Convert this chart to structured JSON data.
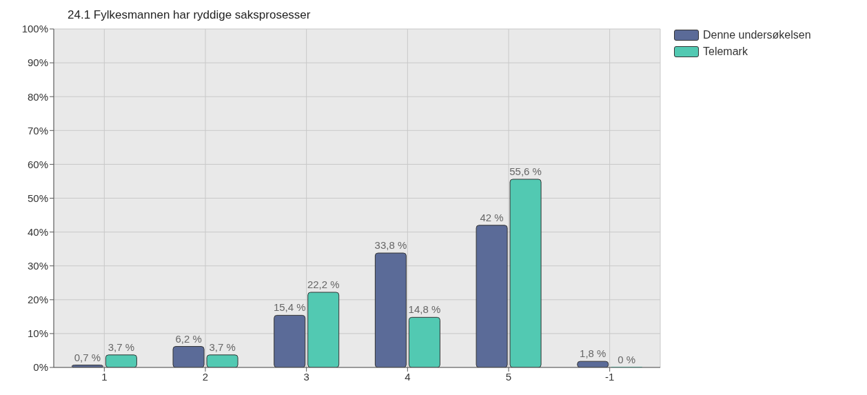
{
  "chart_data": {
    "type": "bar",
    "title": "24.1 Fylkesmannen har ryddige saksprosesser",
    "categories": [
      "1",
      "2",
      "3",
      "4",
      "5",
      "-1"
    ],
    "series": [
      {
        "name": "Denne undersøkelsen",
        "color": "#5b6b98",
        "values": [
          0.7,
          6.2,
          15.4,
          33.8,
          42,
          1.8
        ],
        "value_labels": [
          "0,7 %",
          "6,2 %",
          "15,4 %",
          "33,8 %",
          "42 %",
          "1,8 %"
        ]
      },
      {
        "name": "Telemark",
        "color": "#52c9b2",
        "values": [
          3.7,
          3.7,
          22.2,
          14.8,
          55.6,
          0
        ],
        "value_labels": [
          "3,7 %",
          "3,7 %",
          "22,2 %",
          "14,8 %",
          "55,6 %",
          "0 %"
        ]
      }
    ],
    "ylim": [
      0,
      100
    ],
    "yticks": [
      {
        "value": 0,
        "label": "0%"
      },
      {
        "value": 10,
        "label": "10%"
      },
      {
        "value": 20,
        "label": "20%"
      },
      {
        "value": 30,
        "label": "30%"
      },
      {
        "value": 40,
        "label": "40%"
      },
      {
        "value": 50,
        "label": "50%"
      },
      {
        "value": 60,
        "label": "60%"
      },
      {
        "value": 70,
        "label": "70%"
      },
      {
        "value": 80,
        "label": "80%"
      },
      {
        "value": 90,
        "label": "90%"
      },
      {
        "value": 100,
        "label": "100%"
      }
    ],
    "grid": true,
    "legend": "top right"
  }
}
